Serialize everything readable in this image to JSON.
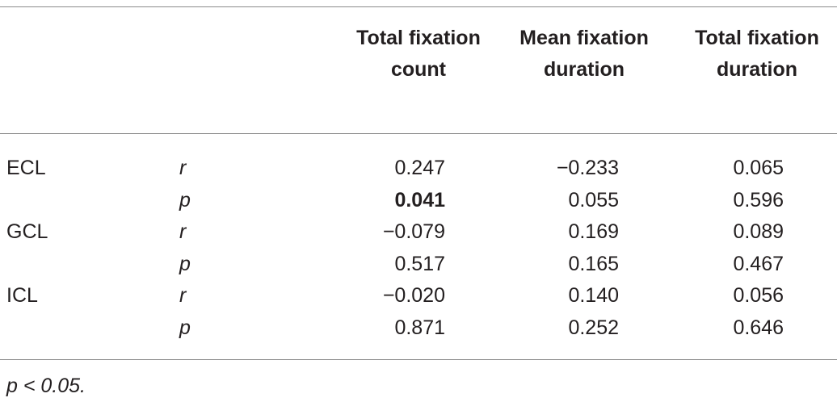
{
  "table": {
    "columns": [
      "Total fixation count",
      "Mean fixation duration",
      "Total fixation duration"
    ],
    "rows": [
      {
        "group": "ECL",
        "stat": "r",
        "values": [
          "0.247",
          "−0.233",
          "0.065"
        ]
      },
      {
        "stat": "p",
        "values": [
          "0.041",
          "0.055",
          "0.596"
        ],
        "bold": [
          0
        ]
      },
      {
        "group": "GCL",
        "stat": "r",
        "values": [
          "−0.079",
          "0.169",
          "0.089"
        ]
      },
      {
        "stat": "p",
        "values": [
          "0.517",
          "0.165",
          "0.467"
        ]
      },
      {
        "group": "ICL",
        "stat": "r",
        "values": [
          "−0.020",
          "0.140",
          "0.056"
        ]
      },
      {
        "stat": "p",
        "values": [
          "0.871",
          "0.252",
          "0.646"
        ]
      }
    ]
  },
  "footnote": "p < 0.05."
}
